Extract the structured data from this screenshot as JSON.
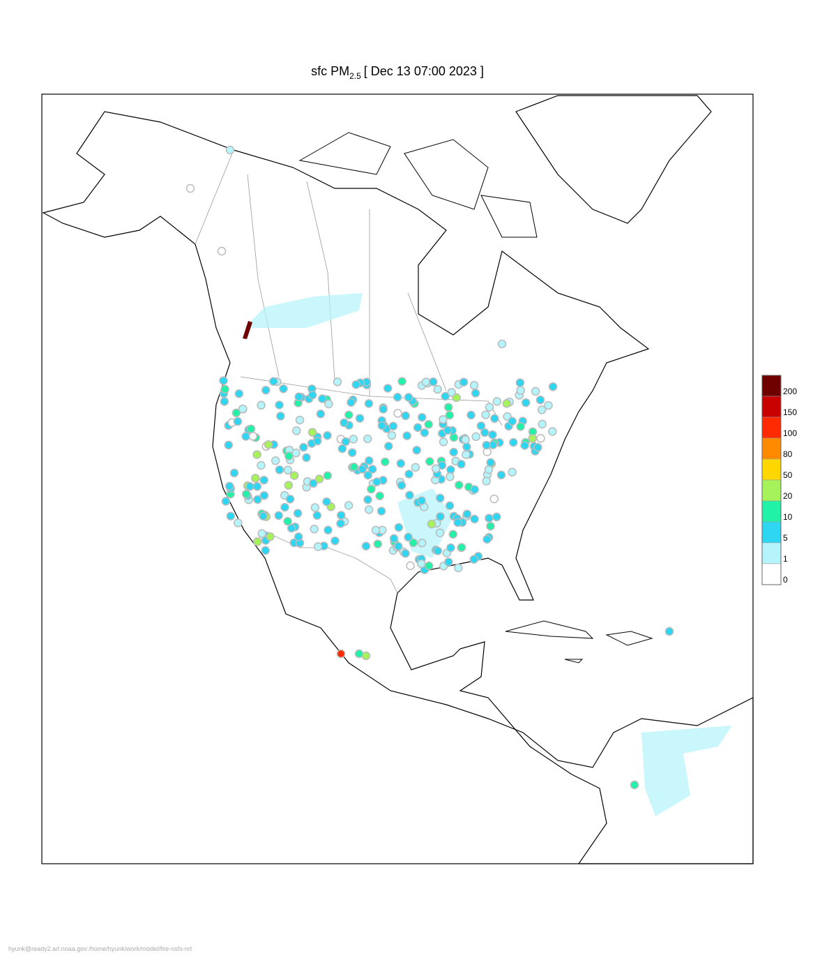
{
  "title": {
    "prefix": "sfc PM",
    "subscript": "2.5",
    "suffix": "[ Dec 13 07:00 2023 ]"
  },
  "legend": {
    "levels": [
      {
        "label": "200",
        "color": "#6e0000"
      },
      {
        "label": "150",
        "color": "#c80000"
      },
      {
        "label": "100",
        "color": "#ff2a00"
      },
      {
        "label": "80",
        "color": "#ff8a00"
      },
      {
        "label": "50",
        "color": "#ffd700"
      },
      {
        "label": "20",
        "color": "#a6f25a"
      },
      {
        "label": "10",
        "color": "#22f2a8"
      },
      {
        "label": "5",
        "color": "#2ed6f2"
      },
      {
        "label": "1",
        "color": "#b4f4fa"
      },
      {
        "label": "0",
        "color": "#ffffff"
      }
    ]
  },
  "footer": "hyunk@ready2.arl.noaa.gov:/home/hyunk/work/model/fire-nsfs-nrt"
}
